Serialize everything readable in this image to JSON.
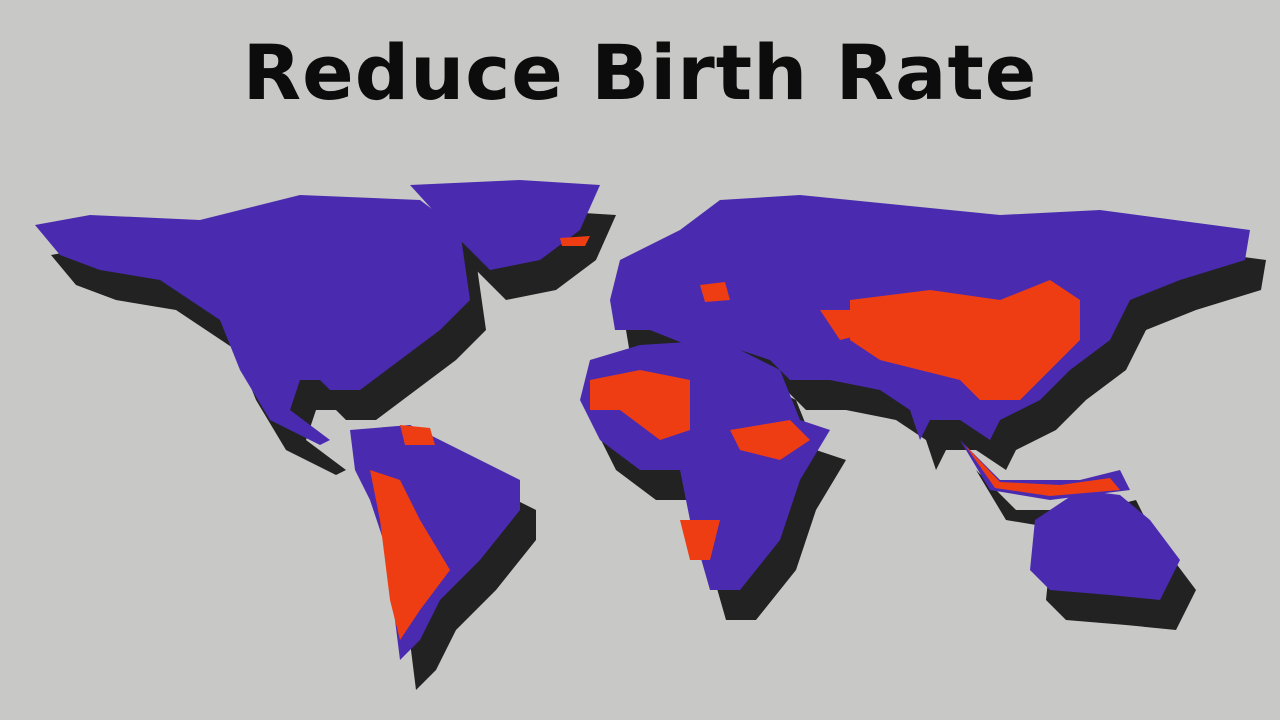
{
  "header": {
    "title": "Reduce Birth Rate"
  }
}
